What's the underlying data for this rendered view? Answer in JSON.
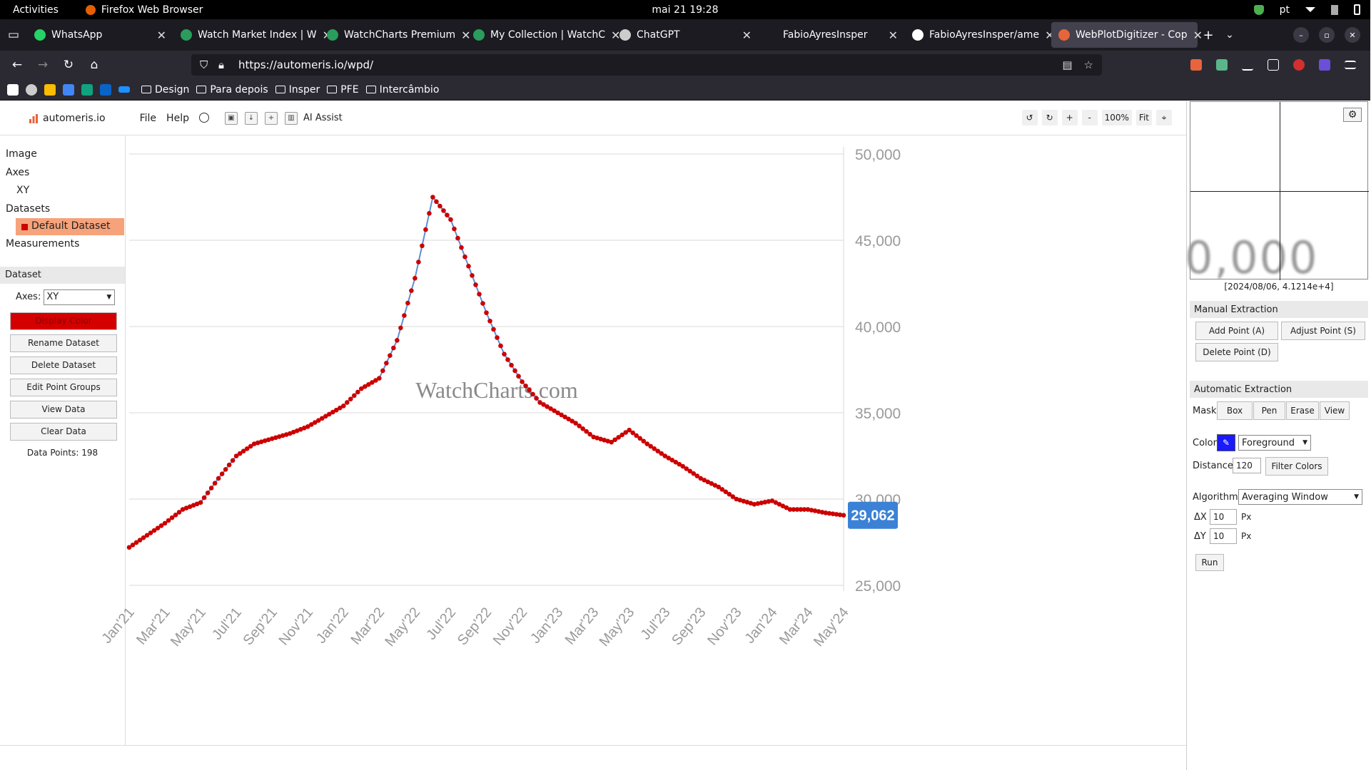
{
  "system": {
    "activities": "Activities",
    "app_name": "Firefox Web Browser",
    "clock": "mai 21  19:28",
    "lang": "pt"
  },
  "tabs": [
    {
      "title": "WhatsApp",
      "color": "#25d366"
    },
    {
      "title": "Watch Market Index | W",
      "color": "#2a9d5c"
    },
    {
      "title": "WatchCharts Premium",
      "color": "#2a9d5c"
    },
    {
      "title": "My Collection | WatchC",
      "color": "#2a9d5c"
    },
    {
      "title": "ChatGPT",
      "color": "#cccccc"
    },
    {
      "title": "FabioAyresInsper",
      "color": "#1c1b22"
    },
    {
      "title": "FabioAyresInsper/ame",
      "color": "#ffffff"
    },
    {
      "title": "WebPlotDigitizer - Cop",
      "color": "#e8643c"
    }
  ],
  "nav": {
    "url": "https://automeris.io/wpd/"
  },
  "bookmarks": {
    "folders": [
      "Design",
      "Para depois",
      "Insper",
      "PFE",
      "Intercâmbio"
    ]
  },
  "app": {
    "brand": "automeris.io",
    "menu": [
      "File",
      "Help"
    ],
    "ai_assist": "AI Assist",
    "zoom_label": "100%",
    "fit_label": "Fit"
  },
  "sidebar": {
    "tree": {
      "image": "Image",
      "axes": "Axes",
      "axes_item": "XY",
      "datasets": "Datasets",
      "dataset_item": "Default Dataset",
      "measurements": "Measurements"
    },
    "dataset_header": "Dataset",
    "axes_label": "Axes:",
    "axes_value": "XY",
    "buttons": [
      "Display Color",
      "Rename Dataset",
      "Delete Dataset",
      "Edit Point Groups",
      "View Data",
      "Clear Data"
    ],
    "data_points": "Data Points: 198"
  },
  "chart_data": {
    "type": "line",
    "title": "",
    "xlabel": "",
    "ylabel": "",
    "watermark": "WatchCharts.com",
    "x_tick_labels": [
      "Jan'21",
      "Mar'21",
      "May'21",
      "Jul'21",
      "Sep'21",
      "Nov'21",
      "Jan'22",
      "Mar'22",
      "May'22",
      "Jul'22",
      "Sep'22",
      "Nov'22",
      "Jan'23",
      "Mar'23",
      "May'23",
      "Jul'23",
      "Sep'23",
      "Nov'23",
      "Jan'24",
      "Mar'24",
      "May'24"
    ],
    "y_tick_labels": [
      "50,000",
      "45,000",
      "40,000",
      "35,000",
      "30,000",
      "25,000"
    ],
    "y_ticks": [
      50000,
      45000,
      40000,
      35000,
      30000,
      25000
    ],
    "ylim": [
      25000,
      50000
    ],
    "current_value_label": "29,062",
    "current_value": 29062,
    "line_color": "#5b8fd6",
    "point_color": "#cc0000",
    "badge_color": "#3b82d6",
    "series": [
      {
        "x": [
          0,
          1,
          2,
          3,
          4,
          5,
          6,
          7,
          8,
          9,
          10,
          11,
          12,
          13,
          14,
          15,
          16,
          17,
          18,
          19,
          20,
          21,
          22,
          23,
          24,
          25,
          26,
          27,
          28,
          29,
          30,
          31,
          32,
          33,
          34,
          35,
          36,
          37,
          38,
          39,
          40
        ],
        "values": [
          27200,
          27900,
          28600,
          29400,
          29800,
          31200,
          32500,
          33200,
          33500,
          33800,
          34200,
          34800,
          35400,
          36400,
          37000,
          39200,
          42800,
          47500,
          46200,
          43500,
          40800,
          38400,
          36800,
          35600,
          35000,
          34400,
          33600,
          33300,
          34000,
          33200,
          32500,
          31900,
          31200,
          30700,
          30000,
          29700,
          29900,
          29400,
          29400,
          29200,
          29062
        ]
      }
    ]
  },
  "right_panel": {
    "zoom_text": "0,000",
    "coords": "[2024/08/06, 4.1214e+4]",
    "manual_header": "Manual Extraction",
    "add_point": "Add Point (A)",
    "adjust_point": "Adjust Point (S)",
    "delete_point": "Delete Point (D)",
    "auto_header": "Automatic Extraction",
    "mask_label": "Mask",
    "mask_tabs": [
      "Box",
      "Pen",
      "Erase",
      "View"
    ],
    "color_label": "Color",
    "color_mode": "Foreground",
    "distance_label": "Distance",
    "distance_value": "120",
    "filter_colors": "Filter Colors",
    "algorithm_label": "Algorithm",
    "algorithm_value": "Averaging Window",
    "dx_label": "ΔX",
    "dx_value": "10",
    "dy_label": "ΔY",
    "dy_value": "10",
    "px_label": "Px",
    "run": "Run",
    "swatch_color": "#1a1aff"
  }
}
